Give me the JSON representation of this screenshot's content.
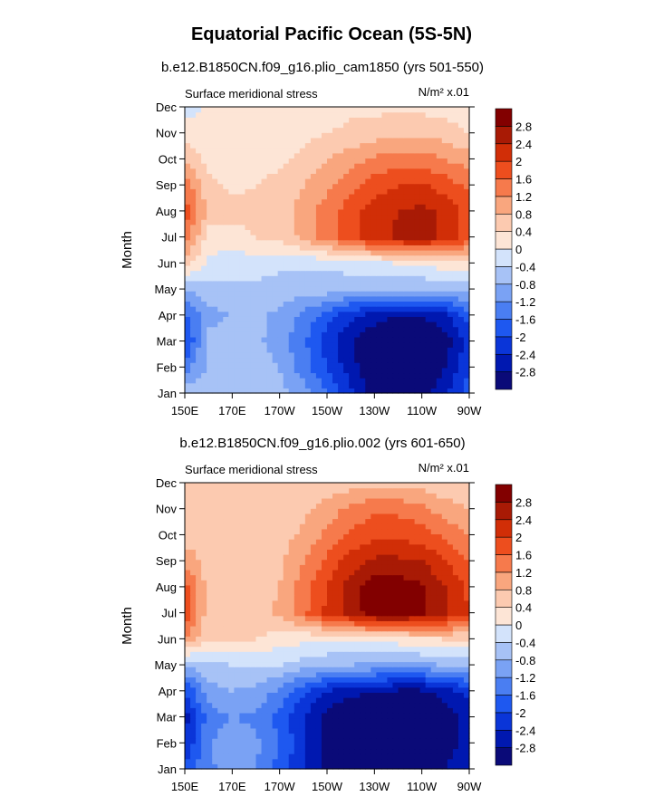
{
  "title": "Equatorial Pacific Ocean (5S-5N)",
  "colors": [
    "#0a0a78",
    "#0018b0",
    "#0a35d8",
    "#1e58f0",
    "#4a7ef2",
    "#7aa2f4",
    "#a7c2f6",
    "#d3e3fb",
    "#fde5d6",
    "#fccab0",
    "#f9a67e",
    "#f67a4c",
    "#ed4e1e",
    "#d12e07",
    "#a81a05",
    "#820000"
  ],
  "chart_data": [
    {
      "type": "heatmap",
      "subtitle": "b.e12.B1850CN.f09_g16.plio_cam1850 (yrs 501-550)",
      "left_label": "Surface meridional stress",
      "right_label": "N/m² x.01",
      "ylabel": "Month",
      "xlabel": "",
      "x_ticks": [
        "150E",
        "170E",
        "170W",
        "150W",
        "130W",
        "110W",
        "90W"
      ],
      "x_values_deg_east": [
        150,
        170,
        190,
        210,
        230,
        250,
        270
      ],
      "y_ticks": [
        "Jan",
        "Feb",
        "Mar",
        "Apr",
        "May",
        "Jun",
        "Jul",
        "Aug",
        "Sep",
        "Oct",
        "Nov",
        "Dec"
      ],
      "levels": [
        "-2.8",
        "-2.4",
        "-2",
        "-1.6",
        "-1.2",
        "-0.8",
        "-0.4",
        "0",
        "0.4",
        "0.8",
        "1.2",
        "1.6",
        "2",
        "2.4",
        "2.8"
      ],
      "grid": false,
      "colorbar": "right",
      "values": [
        [
          -0.5,
          -0.6,
          -0.5,
          -0.6,
          -0.7,
          -1.0,
          -1.6,
          -2.3,
          -3.0,
          -3.0,
          -3.0,
          -2.5,
          -1.8
        ],
        [
          -1.4,
          -0.7,
          -0.5,
          -0.6,
          -0.8,
          -1.4,
          -2.0,
          -2.6,
          -3.2,
          -3.2,
          -3.2,
          -2.8,
          -2.0
        ],
        [
          -2.1,
          -0.7,
          -0.6,
          -0.7,
          -1.0,
          -1.5,
          -2.2,
          -2.8,
          -3.2,
          -3.2,
          -3.2,
          -3.0,
          -2.2
        ],
        [
          -1.7,
          -0.9,
          -0.8,
          -0.7,
          -0.9,
          -1.3,
          -1.8,
          -2.3,
          -2.6,
          -2.8,
          -2.8,
          -2.5,
          -1.8
        ],
        [
          -0.8,
          -0.6,
          -0.5,
          -0.5,
          -0.6,
          -0.6,
          -0.6,
          -0.7,
          -0.7,
          -0.8,
          -0.8,
          -0.7,
          -0.6
        ],
        [
          0.6,
          -0.1,
          -0.2,
          -0.2,
          -0.3,
          -0.3,
          -0.3,
          -0.2,
          -0.1,
          0.0,
          0.1,
          0.2,
          0.2
        ],
        [
          1.5,
          0.2,
          0.2,
          0.4,
          0.5,
          0.9,
          1.4,
          1.9,
          2.2,
          2.5,
          2.6,
          2.3,
          1.8
        ],
        [
          1.8,
          0.7,
          0.6,
          0.5,
          0.5,
          1.0,
          1.4,
          1.8,
          2.2,
          2.4,
          2.5,
          2.3,
          1.8
        ],
        [
          1.5,
          0.5,
          0.3,
          0.4,
          0.5,
          0.8,
          1.1,
          1.5,
          1.8,
          2.0,
          2.1,
          1.8,
          1.5
        ],
        [
          0.7,
          0.3,
          0.3,
          0.3,
          0.3,
          0.5,
          0.8,
          1.0,
          1.3,
          1.4,
          1.4,
          1.2,
          1.0
        ],
        [
          0.2,
          0.1,
          0.2,
          0.2,
          0.3,
          0.3,
          0.4,
          0.5,
          0.6,
          0.7,
          0.7,
          0.6,
          0.4
        ],
        [
          -0.2,
          0.1,
          0.1,
          0.1,
          0.2,
          0.2,
          0.2,
          0.3,
          0.3,
          0.3,
          0.3,
          0.2,
          0.2
        ]
      ]
    },
    {
      "type": "heatmap",
      "subtitle": "b.e12.B1850CN.f09_g16.plio.002 (yrs 601-650)",
      "left_label": "Surface meridional stress",
      "right_label": "N/m² x.01",
      "ylabel": "Month",
      "xlabel": "",
      "x_ticks": [
        "150E",
        "170E",
        "170W",
        "150W",
        "130W",
        "110W",
        "90W"
      ],
      "x_values_deg_east": [
        150,
        170,
        190,
        210,
        230,
        250,
        270
      ],
      "y_ticks": [
        "Jan",
        "Feb",
        "Mar",
        "Apr",
        "May",
        "Jun",
        "Jul",
        "Aug",
        "Sep",
        "Oct",
        "Nov",
        "Dec"
      ],
      "levels": [
        "-2.8",
        "-2.4",
        "-2",
        "-1.6",
        "-1.2",
        "-0.8",
        "-0.4",
        "0",
        "0.4",
        "0.8",
        "1.2",
        "1.6",
        "2",
        "2.4",
        "2.8"
      ],
      "grid": false,
      "colorbar": "right",
      "values": [
        [
          -1.9,
          -1.3,
          -1.0,
          -1.2,
          -1.8,
          -2.4,
          -2.9,
          -3.0,
          -3.0,
          -3.0,
          -3.0,
          -2.8,
          -2.4
        ],
        [
          -2.4,
          -1.2,
          -1.0,
          -1.1,
          -1.6,
          -2.3,
          -2.9,
          -3.2,
          -3.2,
          -3.2,
          -3.2,
          -3.0,
          -2.6
        ],
        [
          -2.6,
          -1.4,
          -1.2,
          -1.3,
          -1.8,
          -2.4,
          -3.0,
          -3.2,
          -3.2,
          -3.2,
          -3.2,
          -3.0,
          -2.7
        ],
        [
          -2.0,
          -1.0,
          -0.8,
          -0.9,
          -1.3,
          -1.9,
          -2.4,
          -2.7,
          -2.8,
          -2.9,
          -2.9,
          -2.6,
          -2.2
        ],
        [
          -0.8,
          -0.5,
          -0.4,
          -0.4,
          -0.4,
          -0.6,
          -0.7,
          -0.8,
          -0.9,
          -0.9,
          -0.9,
          -0.8,
          -0.7
        ],
        [
          1.2,
          0.4,
          0.4,
          0.4,
          0.2,
          0.1,
          0.0,
          0.0,
          0.1,
          0.2,
          0.3,
          0.4,
          0.4
        ],
        [
          1.9,
          0.6,
          0.6,
          0.6,
          0.9,
          1.5,
          2.1,
          2.6,
          3.0,
          3.0,
          2.9,
          2.5,
          2.0
        ],
        [
          1.8,
          0.6,
          0.6,
          0.6,
          0.8,
          1.4,
          2.0,
          2.6,
          3.0,
          3.0,
          2.9,
          2.4,
          1.9
        ],
        [
          1.1,
          0.6,
          0.6,
          0.6,
          0.7,
          1.2,
          1.7,
          2.2,
          2.5,
          2.5,
          2.4,
          2.0,
          1.6
        ],
        [
          0.6,
          0.5,
          0.5,
          0.5,
          0.6,
          0.9,
          1.3,
          1.7,
          1.9,
          1.9,
          1.8,
          1.5,
          1.2
        ],
        [
          0.5,
          0.5,
          0.5,
          0.5,
          0.5,
          0.7,
          1.0,
          1.3,
          1.5,
          1.5,
          1.3,
          1.0,
          0.8
        ],
        [
          0.4,
          0.4,
          0.4,
          0.4,
          0.4,
          0.4,
          0.5,
          0.6,
          0.7,
          0.7,
          0.6,
          0.5,
          0.4
        ]
      ]
    }
  ]
}
